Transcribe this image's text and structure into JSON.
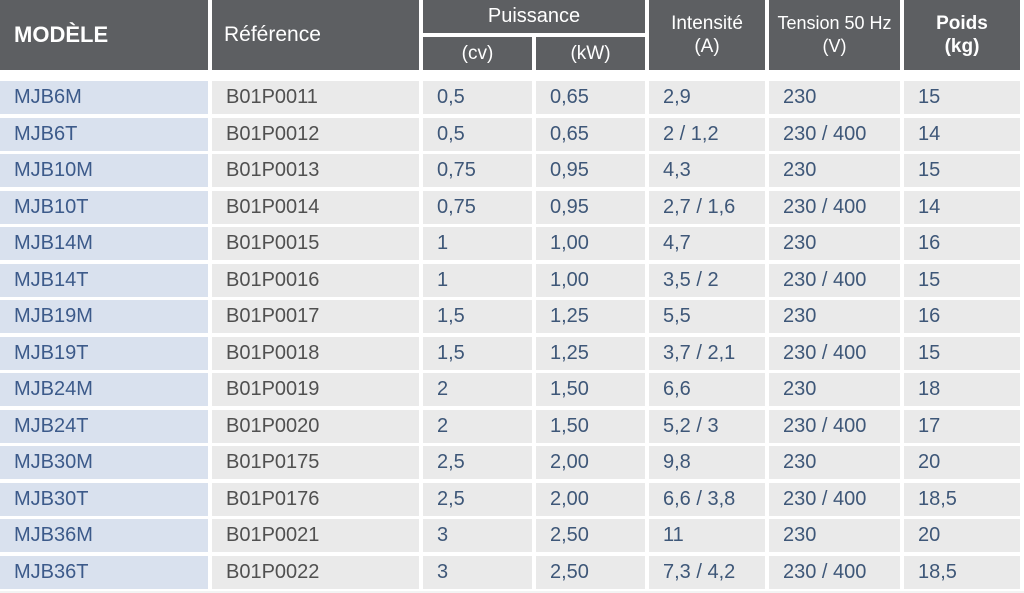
{
  "header": {
    "model": "MODÈLE",
    "reference": "Référence",
    "puissance": "Puissance",
    "cv": "(cv)",
    "kw": "(kW)",
    "intensite": "Intensité",
    "intensite_unit": "(A)",
    "tension": "Tension 50 Hz",
    "tension_unit": "(V)",
    "poids": "Poids",
    "poids_unit": "(kg)"
  },
  "rows": [
    {
      "model": "MJB6M",
      "ref": "B01P0011",
      "cv": "0,5",
      "kw": "0,65",
      "int": "2,9",
      "ten": "230",
      "poi": "15"
    },
    {
      "model": "MJB6T",
      "ref": "B01P0012",
      "cv": "0,5",
      "kw": "0,65",
      "int": "2 / 1,2",
      "ten": "230 / 400",
      "poi": "14"
    },
    {
      "model": "MJB10M",
      "ref": "B01P0013",
      "cv": "0,75",
      "kw": "0,95",
      "int": "4,3",
      "ten": "230",
      "poi": "15"
    },
    {
      "model": "MJB10T",
      "ref": "B01P0014",
      "cv": "0,75",
      "kw": "0,95",
      "int": "2,7 / 1,6",
      "ten": "230 / 400",
      "poi": "14"
    },
    {
      "model": "MJB14M",
      "ref": "B01P0015",
      "cv": "1",
      "kw": "1,00",
      "int": "4,7",
      "ten": "230",
      "poi": "16"
    },
    {
      "model": "MJB14T",
      "ref": "B01P0016",
      "cv": "1",
      "kw": "1,00",
      "int": "3,5 / 2",
      "ten": "230 / 400",
      "poi": "15"
    },
    {
      "model": "MJB19M",
      "ref": "B01P0017",
      "cv": "1,5",
      "kw": "1,25",
      "int": "5,5",
      "ten": "230",
      "poi": "16"
    },
    {
      "model": "MJB19T",
      "ref": "B01P0018",
      "cv": "1,5",
      "kw": "1,25",
      "int": "3,7 / 2,1",
      "ten": "230 / 400",
      "poi": "15"
    },
    {
      "model": "MJB24M",
      "ref": "B01P0019",
      "cv": "2",
      "kw": "1,50",
      "int": "6,6",
      "ten": "230",
      "poi": "18"
    },
    {
      "model": "MJB24T",
      "ref": "B01P0020",
      "cv": "2",
      "kw": "1,50",
      "int": "5,2 / 3",
      "ten": "230 / 400",
      "poi": "17"
    },
    {
      "model": "MJB30M",
      "ref": "B01P0175",
      "cv": "2,5",
      "kw": "2,00",
      "int": "9,8",
      "ten": "230",
      "poi": "20"
    },
    {
      "model": "MJB30T",
      "ref": "B01P0176",
      "cv": "2,5",
      "kw": "2,00",
      "int": "6,6 / 3,8",
      "ten": "230 / 400",
      "poi": "18,5"
    },
    {
      "model": "MJB36M",
      "ref": "B01P0021",
      "cv": "3",
      "kw": "2,50",
      "int": "11",
      "ten": "230",
      "poi": "20"
    },
    {
      "model": "MJB36T",
      "ref": "B01P0022",
      "cv": "3",
      "kw": "2,50",
      "int": "7,3 / 4,2",
      "ten": "230 / 400",
      "poi": "18,5"
    }
  ]
}
